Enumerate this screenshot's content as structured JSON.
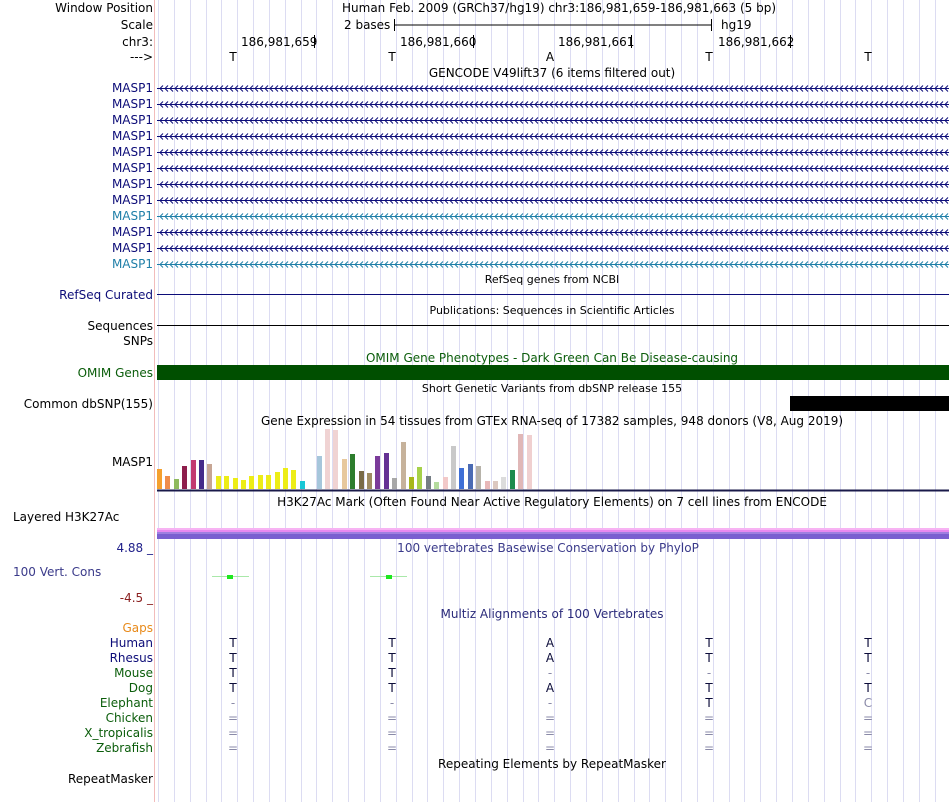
{
  "header": {
    "window_position_label": "Window Position",
    "window_position_value": "Human Feb. 2009 (GRCh37/hg19)   chr3:186,981,659-186,981,663 (5 bp)",
    "scale_label": "Scale",
    "scale_value": "2 bases",
    "scale_assembly": "hg19",
    "chr_label": "chr3:",
    "coords": [
      "186,981,659",
      "186,981,660",
      "186,981,661",
      "186,981,662"
    ],
    "strand_label": "--->",
    "bases": [
      "T",
      "T",
      "A",
      "T",
      "T"
    ]
  },
  "gencode": {
    "title": "GENCODE V49lift37 (6 items filtered out)",
    "genes": [
      {
        "name": "MASP1",
        "color": "#0c0c78"
      },
      {
        "name": "MASP1",
        "color": "#0c0c78"
      },
      {
        "name": "MASP1",
        "color": "#0c0c78"
      },
      {
        "name": "MASP1",
        "color": "#0c0c78"
      },
      {
        "name": "MASP1",
        "color": "#0c0c78"
      },
      {
        "name": "MASP1",
        "color": "#0c0c78"
      },
      {
        "name": "MASP1",
        "color": "#0c0c78"
      },
      {
        "name": "MASP1",
        "color": "#0c0c78"
      },
      {
        "name": "MASP1",
        "color": "#1f7fa8"
      },
      {
        "name": "MASP1",
        "color": "#0c0c78"
      },
      {
        "name": "MASP1",
        "color": "#0c0c78"
      },
      {
        "name": "MASP1",
        "color": "#1f7fa8"
      }
    ]
  },
  "refseq": {
    "title": "RefSeq genes from NCBI",
    "label": "RefSeq Curated"
  },
  "publications": {
    "title": "Publications: Sequences in Scientific Articles",
    "label": "Sequences"
  },
  "snps": {
    "label": "SNPs"
  },
  "omim": {
    "title": "OMIM Gene Phenotypes - Dark Green Can Be Disease-causing",
    "label": "OMIM Genes",
    "color": "#004f00"
  },
  "dbsnp": {
    "title": "Short Genetic Variants from dbSNP release 155",
    "label": "Common dbSNP(155)"
  },
  "gtex": {
    "title": "Gene Expression in 54 tissues from GTEx RNA-seq of 17382 samples, 948 donors (V8, Aug 2019)",
    "label": "MASP1",
    "tissues": [
      {
        "value": 0.34,
        "color": "#f5a02e"
      },
      {
        "value": 0.22,
        "color": "#ef8d4a"
      },
      {
        "value": 0.16,
        "color": "#8fba5e"
      },
      {
        "value": 0.38,
        "color": "#8e1e4c"
      },
      {
        "value": 0.48,
        "color": "#c23a70"
      },
      {
        "value": 0.48,
        "color": "#452b8a"
      },
      {
        "value": 0.42,
        "color": "#c7a694"
      },
      {
        "value": 0.21,
        "color": "#eded17"
      },
      {
        "value": 0.21,
        "color": "#eded17"
      },
      {
        "value": 0.18,
        "color": "#eded17"
      },
      {
        "value": 0.15,
        "color": "#eded17"
      },
      {
        "value": 0.21,
        "color": "#eded17"
      },
      {
        "value": 0.23,
        "color": "#eded17"
      },
      {
        "value": 0.24,
        "color": "#eded17"
      },
      {
        "value": 0.29,
        "color": "#eded17"
      },
      {
        "value": 0.35,
        "color": "#eded17"
      },
      {
        "value": 0.31,
        "color": "#eded17"
      },
      {
        "value": 0.14,
        "color": "#19c7d6"
      },
      {
        "value": 0.0,
        "color": "#ffffff"
      },
      {
        "value": 0.55,
        "color": "#a6c6db"
      },
      {
        "value": 1.0,
        "color": "#f0d3d3"
      },
      {
        "value": 0.98,
        "color": "#f0d3d3"
      },
      {
        "value": 0.5,
        "color": "#e7c89d"
      },
      {
        "value": 0.58,
        "color": "#2d7d2d"
      },
      {
        "value": 0.3,
        "color": "#7a6b47"
      },
      {
        "value": 0.26,
        "color": "#a08c63"
      },
      {
        "value": 0.55,
        "color": "#7b3b9a"
      },
      {
        "value": 0.6,
        "color": "#653294"
      },
      {
        "value": 0.19,
        "color": "#a8a8a8"
      },
      {
        "value": 0.78,
        "color": "#c6b29b"
      },
      {
        "value": 0.2,
        "color": "#a7b71a"
      },
      {
        "value": 0.37,
        "color": "#a6d14a"
      },
      {
        "value": 0.21,
        "color": "#757d84"
      },
      {
        "value": 0.11,
        "color": "#b5dc9e"
      },
      {
        "value": 0.2,
        "color": "#f2c9c9"
      },
      {
        "value": 0.71,
        "color": "#c9c9c9"
      },
      {
        "value": 0.35,
        "color": "#3e6fd6"
      },
      {
        "value": 0.42,
        "color": "#4b6bb4"
      },
      {
        "value": 0.38,
        "color": "#b7b3aa"
      },
      {
        "value": 0.14,
        "color": "#e8b8b8"
      },
      {
        "value": 0.14,
        "color": "#dcc8c0"
      },
      {
        "value": 0.2,
        "color": "#dcdcdc"
      },
      {
        "value": 0.32,
        "color": "#1c8b4d"
      },
      {
        "value": 0.92,
        "color": "#e0b7b7"
      },
      {
        "value": 0.9,
        "color": "#f0d0d0"
      }
    ]
  },
  "h3k27ac": {
    "title": "H3K27Ac Mark (Often Found Near Active Regulatory Elements) on 7 cell lines from ENCODE",
    "label": "Layered H3K27Ac",
    "colors": [
      "#f7b3f3",
      "#e888f0",
      "#9f7fe0",
      "#7a5fd0"
    ]
  },
  "phylop": {
    "title": "100 vertebrates Basewise Conservation by PhyloP",
    "label": "100 Vert. Cons",
    "max": "4.88 _",
    "min": "-4.5 _",
    "max_color": "#1f1f8a",
    "min_color": "#8a1f1f"
  },
  "multiz": {
    "title": "Multiz Alignments of 100 Vertebrates",
    "gaps_label": "Gaps",
    "species": [
      {
        "name": "Human",
        "color": "#0c0c78",
        "bases": [
          "T",
          "T",
          "A",
          "T",
          "T"
        ],
        "dim": [
          false,
          false,
          false,
          false,
          false
        ]
      },
      {
        "name": "Rhesus",
        "color": "#0c0c78",
        "bases": [
          "T",
          "T",
          "A",
          "T",
          "T"
        ],
        "dim": [
          false,
          false,
          false,
          false,
          false
        ]
      },
      {
        "name": "Mouse",
        "color": "#0b5d0b",
        "bases": [
          "T",
          "T",
          "-",
          "-",
          "-"
        ],
        "dim": [
          false,
          false,
          true,
          true,
          true
        ]
      },
      {
        "name": "Dog",
        "color": "#0b5d0b",
        "bases": [
          "T",
          "T",
          "A",
          "T",
          "T"
        ],
        "dim": [
          false,
          false,
          false,
          false,
          false
        ]
      },
      {
        "name": "Elephant",
        "color": "#0b5d0b",
        "bases": [
          "-",
          "-",
          "-",
          "T",
          "C"
        ],
        "dim": [
          true,
          true,
          true,
          false,
          true
        ]
      },
      {
        "name": "Chicken",
        "color": "#0b5d0b",
        "bases": [
          "=",
          "=",
          "=",
          "=",
          "="
        ],
        "dim": [
          true,
          true,
          true,
          true,
          true
        ]
      },
      {
        "name": "X_tropicalis",
        "color": "#0b5d0b",
        "bases": [
          "=",
          "=",
          "=",
          "=",
          "="
        ],
        "dim": [
          true,
          true,
          true,
          true,
          true
        ]
      },
      {
        "name": "Zebrafish",
        "color": "#0b5d0b",
        "bases": [
          "=",
          "=",
          "=",
          "=",
          "="
        ],
        "dim": [
          true,
          true,
          true,
          true,
          true
        ]
      }
    ]
  },
  "repeatmasker": {
    "title": "Repeating Elements by RepeatMasker",
    "label": "RepeatMasker"
  }
}
